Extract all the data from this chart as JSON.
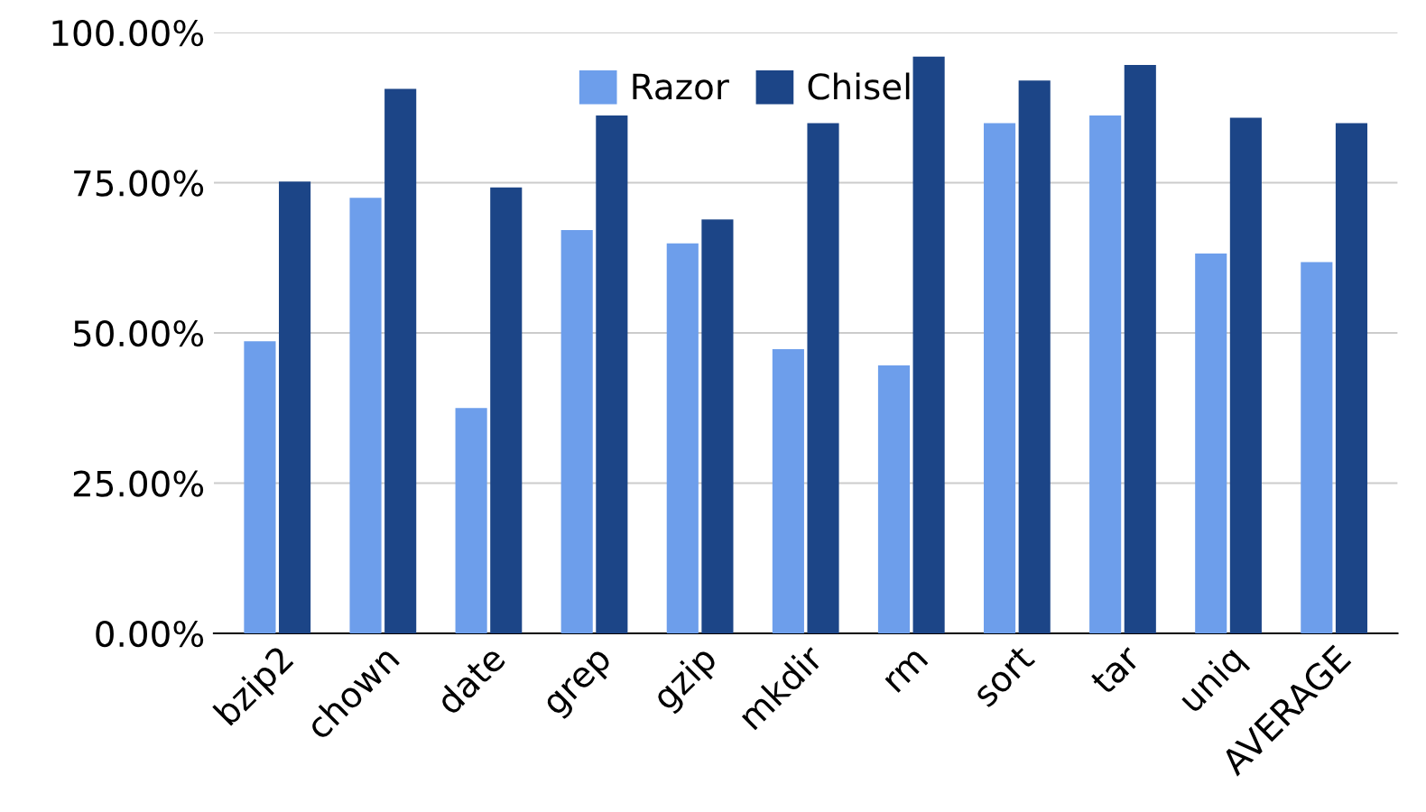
{
  "chart_data": {
    "type": "bar",
    "categories": [
      "bzip2",
      "chown",
      "date",
      "grep",
      "gzip",
      "mkdir",
      "rm",
      "sort",
      "tar",
      "uniq",
      "AVERAGE"
    ],
    "series": [
      {
        "name": "Razor",
        "color": "#6d9eeb",
        "values": [
          48.6,
          72.5,
          37.5,
          67.1,
          64.9,
          47.3,
          44.6,
          84.9,
          86.2,
          63.2,
          61.8
        ]
      },
      {
        "name": "Chisel",
        "color": "#1c4587",
        "values": [
          75.2,
          90.6,
          74.2,
          86.2,
          68.9,
          84.9,
          96.0,
          92.0,
          94.6,
          85.8,
          84.9
        ]
      }
    ],
    "ylim": [
      0,
      100
    ],
    "yticks": [
      {
        "value": 0,
        "label": "0.00%"
      },
      {
        "value": 25,
        "label": "25.00%"
      },
      {
        "value": 50,
        "label": "50.00%"
      },
      {
        "value": 75,
        "label": "75.00%"
      },
      {
        "value": 100,
        "label": "100.00%"
      }
    ],
    "grid": "y",
    "legend": "top"
  }
}
